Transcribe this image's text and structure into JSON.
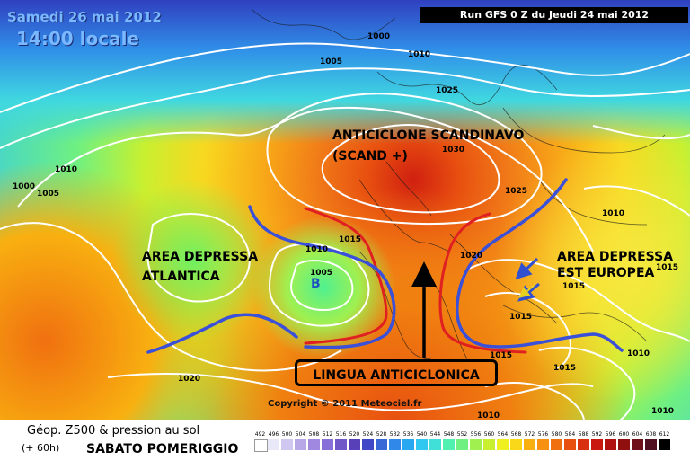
{
  "header": {
    "date": "Samedi 26 mai 2012",
    "time": "14:00 locale",
    "run": "Run GFS 0 Z du Jeudi 24 mai 2012"
  },
  "annotations": {
    "anticiclone_line1": "ANTICICLONE SCANDINAVO",
    "anticiclone_line2": "(SCAND +)",
    "atlantic_line1": "AREA DEPRESSA",
    "atlantic_line2": "ATLANTICA",
    "east_line1": "AREA DEPRESSA",
    "east_line2": "EST EUROPEA",
    "lingua": "LINGUA ANTICICLONICA",
    "low_marker": "B"
  },
  "isobar_labels": [
    "1000",
    "1010",
    "1005",
    "1025",
    "1030",
    "1025",
    "1010",
    "1000",
    "1005",
    "1015",
    "1005",
    "1010",
    "1020",
    "1015",
    "1015",
    "1010",
    "1015",
    "1020",
    "1010",
    "1010",
    "1015",
    "1015",
    "1010"
  ],
  "copyright": "Copyright © 2011 Meteociel.fr",
  "legend": {
    "title": "Géop. Z500 & pression au sol",
    "hours": "(+ 60h)",
    "note": "SABATO POMERIGGIO",
    "values": [
      "492",
      "496",
      "500",
      "504",
      "508",
      "512",
      "516",
      "520",
      "524",
      "528",
      "532",
      "536",
      "540",
      "544",
      "548",
      "552",
      "556",
      "560",
      "564",
      "568",
      "572",
      "576",
      "580",
      "584",
      "588",
      "592",
      "596",
      "600",
      "604",
      "608",
      "612"
    ],
    "colors": [
      "#ffffff",
      "#e8e8f8",
      "#d0c8f0",
      "#b8a8e8",
      "#a088e0",
      "#8870d8",
      "#7058c8",
      "#5840b8",
      "#4048c8",
      "#3868d8",
      "#3088e8",
      "#28a8f0",
      "#30c8f0",
      "#40e0d8",
      "#50f0b0",
      "#70f080",
      "#a0f050",
      "#c8f030",
      "#f0f020",
      "#f8d818",
      "#f8b010",
      "#f89010",
      "#f07010",
      "#e85010",
      "#d83010",
      "#c81810",
      "#b01010",
      "#901010",
      "#701018",
      "#501020",
      "#000000"
    ]
  }
}
